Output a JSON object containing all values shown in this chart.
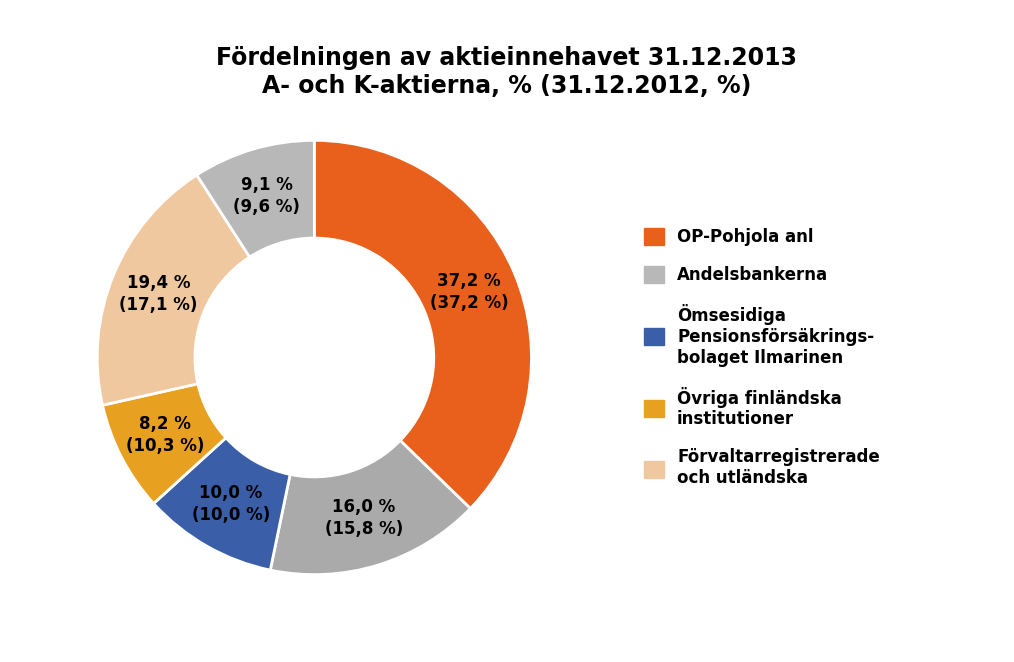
{
  "title_line1": "Fördelningen av aktieinnehavet 31.12.2013",
  "title_line2": "A- och K-aktierna, % (31.12.2012, %)",
  "slices": [
    37.2,
    16.0,
    10.0,
    8.2,
    19.4,
    9.1
  ],
  "colors": [
    "#E8601C",
    "#AAAAAA",
    "#3A5FA8",
    "#E8A020",
    "#F0C8A0",
    "#B8B8B8"
  ],
  "labels": [
    "37,2 %\n(37,2 %)",
    "16,0 %\n(15,8 %)",
    "10,0 %\n(10,0 %)",
    "8,2 %\n(10,3 %)",
    "19,4 %\n(17,1 %)",
    "9,1 %\n(9,6 %)"
  ],
  "legend_labels": [
    "OP-Pohjola anl",
    "Andelsbankerna",
    "Ömsesidiga\nPensionsförsäkrings-\nbolaget Ilmarinen",
    "Övriga finländska\ninstitutioner",
    "Förvaltarregistrerade\noch utländska"
  ],
  "legend_colors": [
    "#E8601C",
    "#B8B8B8",
    "#3A5FA8",
    "#E8A020",
    "#F0C8A0"
  ],
  "background_color": "#FFFFFF",
  "wedge_edge_color": "#FFFFFF",
  "donut_width": 0.45,
  "start_angle": 90,
  "title_fontsize": 17,
  "label_fontsize": 12
}
